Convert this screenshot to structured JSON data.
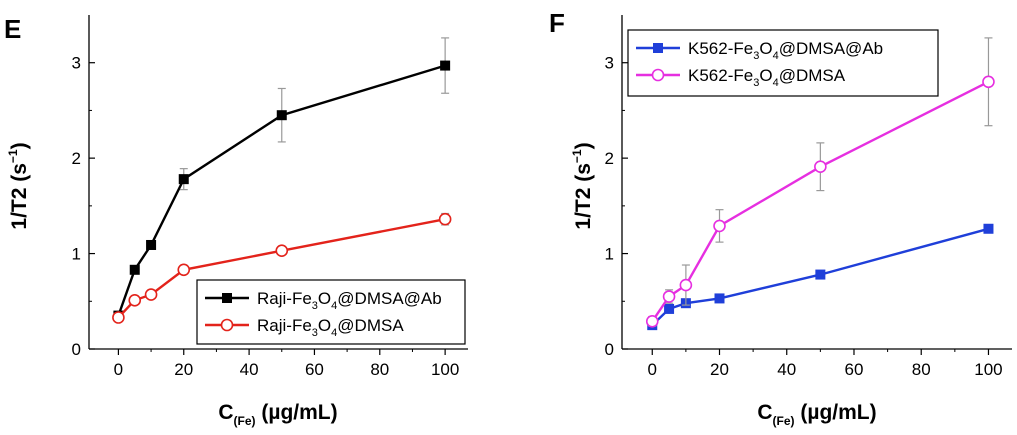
{
  "colors": {
    "black_series": "#000000",
    "red_series": "#e3231b",
    "blue_series": "#1f3fd9",
    "magenta_series": "#e62fe0",
    "error_bar": "#999999"
  },
  "chart_data": [
    {
      "type": "line",
      "panel_label": "E",
      "xlabel": {
        "main": "C",
        "sub": "(Fe)",
        "rest": " (µg/mL)"
      },
      "ylabel": {
        "main": "1/T2 (s",
        "sup": "−1",
        "rest": ")"
      },
      "xlim": [
        -9,
        107
      ],
      "ylim": [
        0,
        3.5
      ],
      "xticks": [
        0,
        20,
        40,
        60,
        80,
        100
      ],
      "yticks": [
        0,
        1,
        2,
        3
      ],
      "grid": false,
      "legend_position": "bottom-right",
      "series": [
        {
          "name": "Raji-Fe3O4@DMSA@Ab",
          "name_parts": [
            "Raji-Fe",
            "3",
            "O",
            "4",
            "@DMSA@Ab"
          ],
          "color": "#000000",
          "marker": "filled-square",
          "x": [
            0,
            5,
            10,
            20,
            50,
            100
          ],
          "y": [
            0.35,
            0.83,
            1.09,
            1.78,
            2.45,
            2.97
          ],
          "error": [
            0,
            0,
            0,
            0.11,
            0.28,
            0.29
          ]
        },
        {
          "name": "Raji-Fe3O4@DMSA",
          "name_parts": [
            "Raji-Fe",
            "3",
            "O",
            "4",
            "@DMSA"
          ],
          "color": "#e3231b",
          "marker": "open-circle",
          "x": [
            0,
            5,
            10,
            20,
            50,
            100
          ],
          "y": [
            0.33,
            0.51,
            0.57,
            0.83,
            1.03,
            1.36
          ],
          "error": [
            0,
            0,
            0,
            0,
            0,
            0.06
          ]
        }
      ]
    },
    {
      "type": "line",
      "panel_label": "F",
      "xlabel": {
        "main": "C",
        "sub": "(Fe)",
        "rest": " (µg/mL)"
      },
      "ylabel": {
        "main": "1/T2 (s",
        "sup": "−1",
        "rest": ")"
      },
      "xlim": [
        -9,
        107
      ],
      "ylim": [
        0,
        3.5
      ],
      "xticks": [
        0,
        20,
        40,
        60,
        80,
        100
      ],
      "yticks": [
        0,
        1,
        2,
        3
      ],
      "grid": false,
      "legend_position": "top-left",
      "series": [
        {
          "name": "K562-Fe3O4@DMSA@Ab",
          "name_parts": [
            "K562-Fe",
            "3",
            "O",
            "4",
            "@DMSA@Ab"
          ],
          "color": "#1f3fd9",
          "marker": "filled-square",
          "x": [
            0,
            5,
            10,
            20,
            50,
            100
          ],
          "y": [
            0.25,
            0.42,
            0.48,
            0.53,
            0.78,
            1.26
          ],
          "error": [
            0,
            0,
            0,
            0,
            0,
            0
          ]
        },
        {
          "name": "K562-Fe3O4@DMSA",
          "name_parts": [
            "K562-Fe",
            "3",
            "O",
            "4",
            "@DMSA"
          ],
          "color": "#e62fe0",
          "marker": "open-circle",
          "x": [
            0,
            5,
            10,
            20,
            50,
            100
          ],
          "y": [
            0.29,
            0.55,
            0.67,
            1.29,
            1.91,
            2.8
          ],
          "error": [
            0.05,
            0.07,
            0.21,
            0.17,
            0.25,
            0.46
          ]
        }
      ]
    }
  ]
}
